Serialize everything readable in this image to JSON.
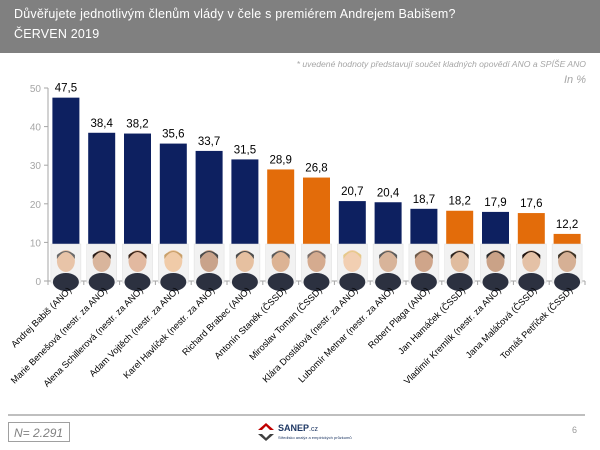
{
  "header": {
    "title": "Důvěřujete jednotlivým členům vlády v čele s premiérem Andrejem Babišem?",
    "subtitle": "ČERVEN 2019"
  },
  "note": "* uvedené hodnoty představují součet kladných opovědí ANO a SPÍŠE ANO",
  "unit_label": "In %",
  "colors": {
    "ano": "#0d2060",
    "cssd": "#e36c0a",
    "header_bg": "#808080"
  },
  "chart_data": {
    "type": "bar",
    "title": "Důvěřujete jednotlivým členům vlády v čele s premiérem Andrejem Babišem?",
    "subtitle": "ČERVEN 2019",
    "xlabel": "",
    "ylabel": "In %",
    "ylim": [
      0,
      50
    ],
    "yticks": [
      0,
      10,
      20,
      30,
      40,
      50
    ],
    "grid": false,
    "categories": [
      "Andrej Babiš (ANO)",
      "Marie Benešová (nestr. za ANO)",
      "Alena Schillerová (nestr. za ANO)",
      "Adam Vojtěch (nestr. za ANO)",
      "Karel Havlíček (nestr. za ANO)",
      "Richard Brabec (ANO)",
      "Antonín Staněk (ČSSD)",
      "Miroslav Toman (ČSSD)",
      "Klára Dostálová (nestr. za ANO)",
      "Lubomír Metnar (nestr. za ANO)",
      "Robert Plaga (ANO)",
      "Jan Hamáček (ČSSD)",
      "Vladimír Kremlík (nestr. za ANO)",
      "Jana Maláčová (ČSSD)",
      "Tomáš Petříček (ČSSD)"
    ],
    "values": [
      47.5,
      38.4,
      38.2,
      35.6,
      33.7,
      31.5,
      28.9,
      26.8,
      20.7,
      20.4,
      18.7,
      18.2,
      17.9,
      17.6,
      12.2
    ],
    "value_labels": [
      "47,5",
      "38,4",
      "38,2",
      "35,6",
      "33,7",
      "31,5",
      "28,9",
      "26,8",
      "20,7",
      "20,4",
      "18,7",
      "18,2",
      "17,9",
      "17,6",
      "12,2"
    ],
    "party_group": [
      "ano",
      "ano",
      "ano",
      "ano",
      "ano",
      "ano",
      "cssd",
      "cssd",
      "ano",
      "ano",
      "ano",
      "cssd",
      "ano",
      "cssd",
      "cssd"
    ],
    "has_portrait_photos": true
  },
  "footer": {
    "sample_size": "N= 2.291",
    "logo_brand": "SANEP",
    "logo_domain": ".cz",
    "logo_tagline": "Středisko analýz a empirických průzkumů",
    "page_number": "6"
  }
}
